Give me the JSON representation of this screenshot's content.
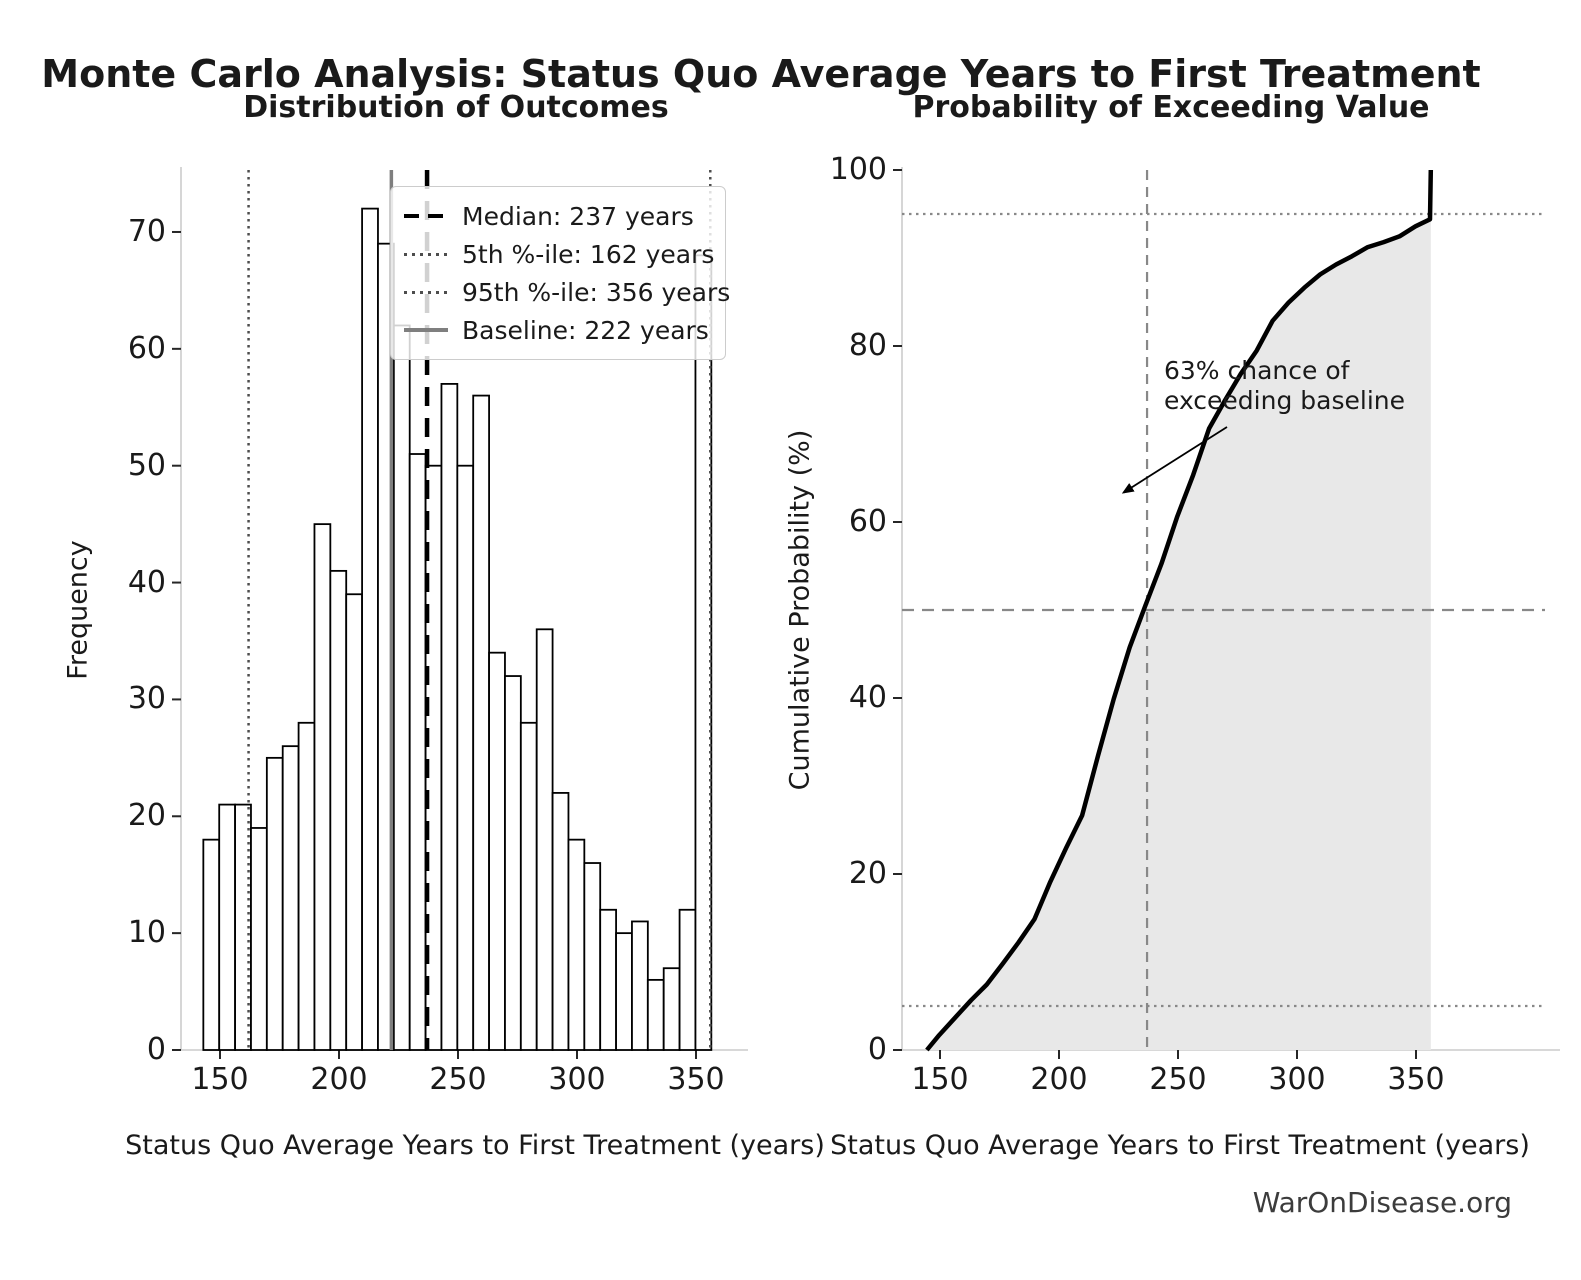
{
  "page": {
    "watermark": "WarOnDisease.org",
    "background": "#ffffff"
  },
  "title": "Monte Carlo Analysis: Status Quo Average Years to First Treatment",
  "colors": {
    "bar_fill": "#ffffff",
    "bar_edge": "#000000",
    "median_line": "#000000",
    "percentile_line": "#4d4d4d",
    "baseline_line": "#7f7f7f",
    "cdf_line": "#000000",
    "cdf_fill": "#e8e8e8",
    "grid_reference": "#888888",
    "spine": "#cccccc",
    "tick": "#262626"
  },
  "chart_data": [
    {
      "type": "bar",
      "title": "Distribution of Outcomes",
      "xlabel": "Status Quo Average Years to First Treatment (years)",
      "ylabel": "Frequency",
      "bin_start": 143,
      "bin_width": 6.67,
      "frequencies": [
        18,
        21,
        21,
        19,
        25,
        26,
        28,
        45,
        41,
        39,
        72,
        69,
        62,
        51,
        50,
        57,
        50,
        56,
        34,
        32,
        28,
        36,
        22,
        18,
        16,
        12,
        10,
        11,
        6,
        7,
        12,
        68
      ],
      "x_ticks": [
        150,
        200,
        250,
        300,
        350
      ],
      "y_ticks": [
        0,
        10,
        20,
        30,
        40,
        50,
        60,
        70
      ],
      "ylim": [
        0,
        75.5
      ],
      "grid": false,
      "legend_position": "upper-right-inside",
      "reference_lines": [
        {
          "label": "Median: 237 years",
          "value": 237,
          "style": "dashed",
          "color": "#000000",
          "width": 4.5
        },
        {
          "label": "5th %-ile: 162 years",
          "value": 162,
          "style": "dotted",
          "color": "#4d4d4d",
          "width": 2.5
        },
        {
          "label": "95th %-ile: 356 years",
          "value": 356,
          "style": "dotted",
          "color": "#4d4d4d",
          "width": 2.5
        },
        {
          "label": "Baseline: 222 years",
          "value": 222,
          "style": "solid",
          "color": "#7f7f7f",
          "width": 3.5
        }
      ]
    },
    {
      "type": "line",
      "title": "Probability of Exceeding Value",
      "xlabel": "Status Quo Average Years to First Treatment (years)",
      "ylabel": "Cumulative Probability (%)",
      "x_ticks": [
        150,
        200,
        250,
        300,
        350
      ],
      "y_ticks": [
        0,
        20,
        40,
        60,
        80,
        100
      ],
      "ylim": [
        0,
        100
      ],
      "curve": "empirical CDF derived from histogram frequencies",
      "curve_start_year": 144.5,
      "end_spike_year": 356.2,
      "h_reference_lines": [
        {
          "percent": 95,
          "style": "dotted"
        },
        {
          "percent": 50,
          "style": "dashed"
        },
        {
          "percent": 5,
          "style": "dotted"
        }
      ],
      "v_reference_line": {
        "year": 237,
        "style": "dashed"
      },
      "annotation": {
        "line1": "63% chance of",
        "line2": "exceeding baseline",
        "exceed_baseline_percent": 63,
        "arrow_tip": {
          "year": 225,
          "percent": 63
        }
      }
    }
  ]
}
